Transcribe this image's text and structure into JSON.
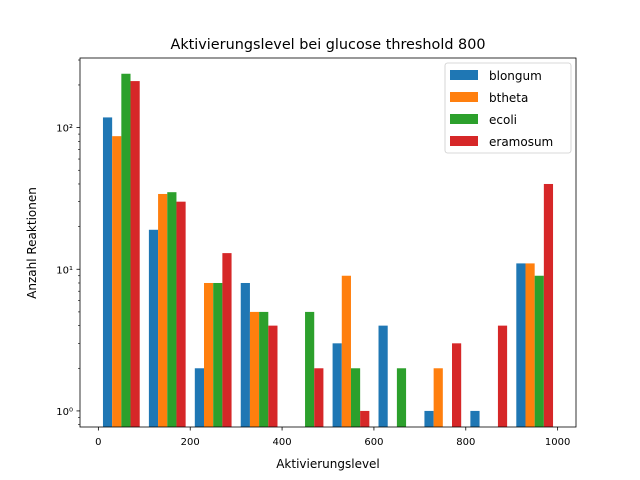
{
  "chart_data": {
    "type": "bar",
    "title": "Aktivierungslevel bei glucose threshold 800",
    "xlabel": "Aktivierungslevel",
    "ylabel": "Anzahl Reaktionen",
    "yscale": "log",
    "xlim": [
      -40,
      1040
    ],
    "ylim": [
      0.77,
      310
    ],
    "xticks": [
      0,
      200,
      400,
      600,
      800,
      1000
    ],
    "yticks": [
      1,
      10,
      100
    ],
    "ytick_labels": [
      "10⁰",
      "10¹",
      "10²"
    ],
    "bin_width": 100,
    "bin_starts": [
      0,
      100,
      200,
      300,
      400,
      500,
      600,
      700,
      800,
      900
    ],
    "legend_position": "top-right",
    "series": [
      {
        "name": "blongum",
        "color": "#1f77b4",
        "values": [
          118,
          19,
          2,
          8,
          0,
          3,
          4,
          1,
          1,
          11
        ]
      },
      {
        "name": "btheta",
        "color": "#ff7f0e",
        "values": [
          87,
          34,
          8,
          5,
          0,
          9,
          0,
          2,
          0,
          11
        ]
      },
      {
        "name": "ecoli",
        "color": "#2ca02c",
        "values": [
          240,
          35,
          8,
          5,
          5,
          2,
          2,
          0,
          0,
          9
        ]
      },
      {
        "name": "eramosum",
        "color": "#d62728",
        "values": [
          213,
          30,
          13,
          4,
          2,
          1,
          0,
          3,
          4,
          40
        ]
      }
    ]
  }
}
